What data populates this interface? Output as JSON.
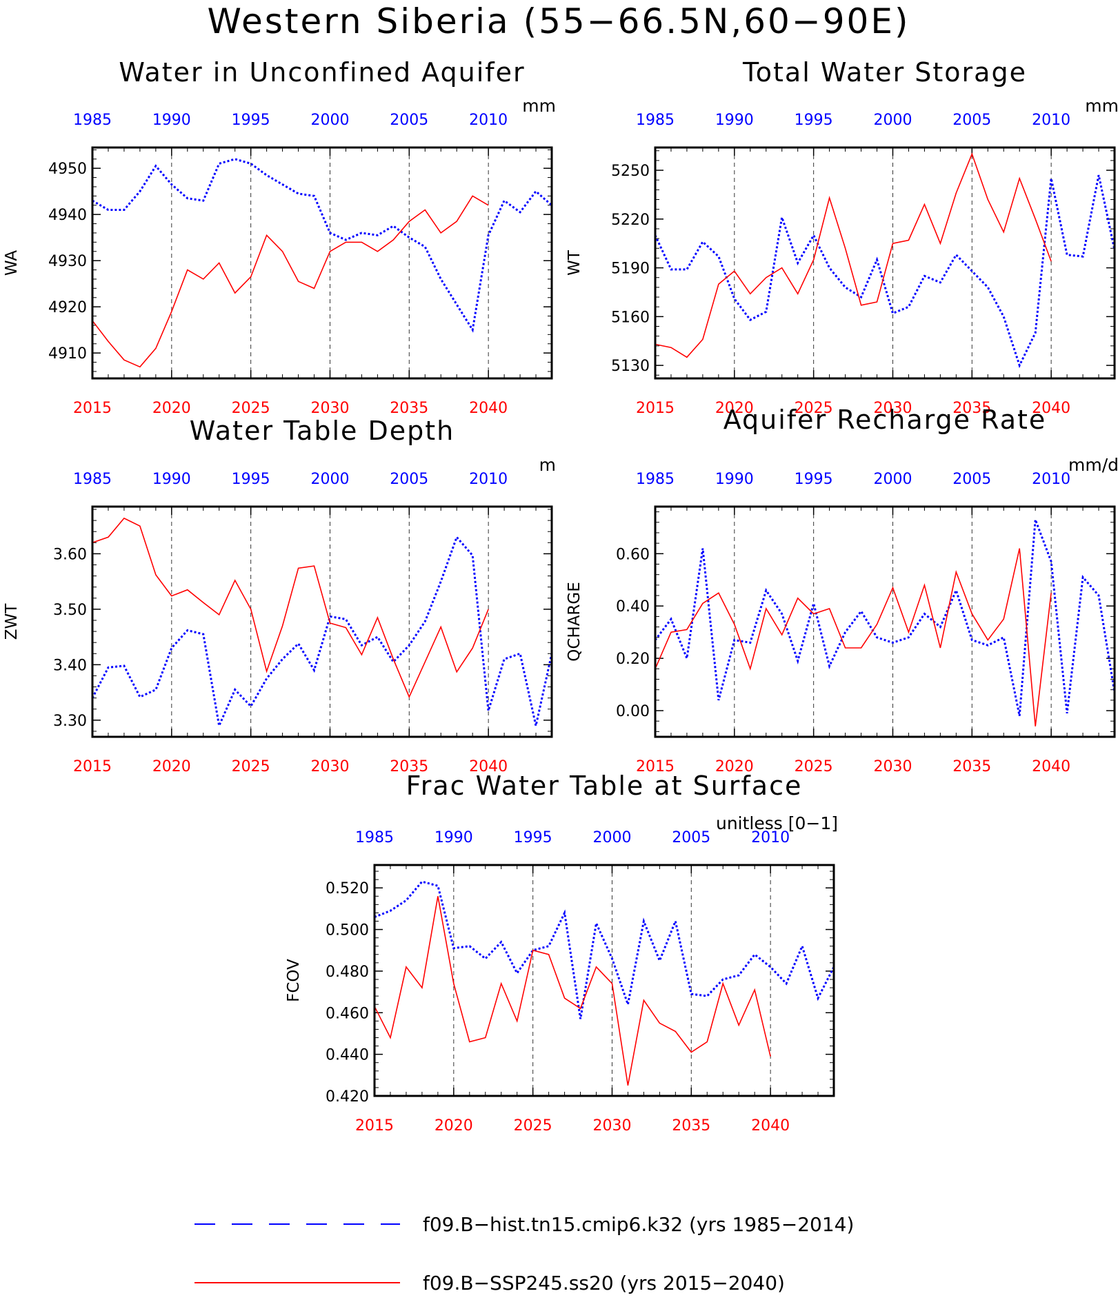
{
  "title": "Western Siberia (55−66.5N,60−90E)",
  "colors": {
    "hist": "#0000ff",
    "ssp": "#ff0000",
    "axis": "#000000"
  },
  "legend": [
    {
      "label": "f09.B−hist.tn15.cmip6.k32 (yrs 1985−2014)",
      "color": "#0000ff",
      "style": "dashed"
    },
    {
      "label": "f09.B−SSP245.ss20 (yrs 2015−2040)",
      "color": "#ff0000",
      "style": "solid"
    }
  ],
  "chart_data": [
    {
      "type": "line",
      "title": "Water in Unconfined Aquifer",
      "ylabel": "WA",
      "units": "mm",
      "ylim": [
        4904.5,
        4954.5
      ],
      "yticks": [
        4910,
        4920,
        4930,
        4940,
        4950
      ],
      "ytick_labels": [
        "4910",
        "4920",
        "4930",
        "4940",
        "4950"
      ],
      "x_top": {
        "range": [
          1985,
          2014
        ],
        "ticks": [
          1985,
          1990,
          1995,
          2000,
          2005,
          2010
        ]
      },
      "x_bottom": {
        "range": [
          2015,
          2044
        ],
        "ticks": [
          2015,
          2020,
          2025,
          2030,
          2035,
          2040
        ]
      },
      "vlines": [
        2020,
        2025,
        2030,
        2035,
        2040
      ],
      "series": [
        {
          "name": "f09.B−hist.tn15.cmip6.k32",
          "axis": "top",
          "style": "dashed",
          "x": [
            1985,
            1986,
            1987,
            1988,
            1989,
            1990,
            1991,
            1992,
            1993,
            1994,
            1995,
            1996,
            1997,
            1998,
            1999,
            2000,
            2001,
            2002,
            2003,
            2004,
            2005,
            2006,
            2007,
            2008,
            2009,
            2010,
            2011,
            2012,
            2013,
            2014
          ],
          "y": [
            4943,
            4941,
            4941,
            4945,
            4950.5,
            4946.5,
            4943.5,
            4943,
            4951,
            4952,
            4951,
            4948.5,
            4946.5,
            4944.5,
            4944,
            4936,
            4934.5,
            4936,
            4935.5,
            4937.5,
            4935,
            4933,
            4926,
            4920.5,
            4915,
            4935.5,
            4943,
            4940.5,
            4945,
            4942
          ]
        },
        {
          "name": "f09.B−SSP245.ss20",
          "axis": "bottom",
          "style": "solid",
          "x": [
            2015,
            2016,
            2017,
            2018,
            2019,
            2020,
            2021,
            2022,
            2023,
            2024,
            2025,
            2026,
            2027,
            2028,
            2029,
            2030,
            2031,
            2032,
            2033,
            2034,
            2035,
            2036,
            2037,
            2038,
            2039,
            2040
          ],
          "y": [
            4917,
            4912.5,
            4908.5,
            4907,
            4911,
            4919,
            4928,
            4926,
            4929.5,
            4923,
            4926.5,
            4935.5,
            4932,
            4925.5,
            4924,
            4932,
            4934,
            4934,
            4932,
            4934.5,
            4938.5,
            4941,
            4936,
            4938.5,
            4944,
            4942
          ]
        }
      ]
    },
    {
      "type": "line",
      "title": "Total Water Storage",
      "ylabel": "WT",
      "units": "mm",
      "ylim": [
        5122,
        5264
      ],
      "yticks": [
        5130,
        5160,
        5190,
        5220,
        5250
      ],
      "ytick_labels": [
        "5130",
        "5160",
        "5190",
        "5220",
        "5250"
      ],
      "x_top": {
        "range": [
          1985,
          2014
        ],
        "ticks": [
          1985,
          1990,
          1995,
          2000,
          2005,
          2010
        ]
      },
      "x_bottom": {
        "range": [
          2015,
          2044
        ],
        "ticks": [
          2015,
          2020,
          2025,
          2030,
          2035,
          2040
        ]
      },
      "vlines": [
        2020,
        2025,
        2030,
        2035,
        2040
      ],
      "series": [
        {
          "name": "f09.B−hist.tn15.cmip6.k32",
          "axis": "top",
          "style": "dashed",
          "x": [
            1985,
            1986,
            1987,
            1988,
            1989,
            1990,
            1991,
            1992,
            1993,
            1994,
            1995,
            1996,
            1997,
            1998,
            1999,
            2000,
            2001,
            2002,
            2003,
            2004,
            2005,
            2006,
            2007,
            2008,
            2009,
            2010,
            2011,
            2012,
            2013,
            2014
          ],
          "y": [
            5210,
            5189,
            5189,
            5206,
            5197,
            5171,
            5158,
            5163,
            5221,
            5193,
            5210,
            5190,
            5178,
            5172,
            5195,
            5162,
            5166,
            5185,
            5181,
            5198,
            5188,
            5178,
            5160,
            5130,
            5150,
            5245,
            5198,
            5197,
            5247,
            5201
          ]
        },
        {
          "name": "f09.B−SSP245.ss20",
          "axis": "bottom",
          "style": "solid",
          "x": [
            2015,
            2016,
            2017,
            2018,
            2019,
            2020,
            2021,
            2022,
            2023,
            2024,
            2025,
            2026,
            2027,
            2028,
            2029,
            2030,
            2031,
            2032,
            2033,
            2034,
            2035,
            2036,
            2037,
            2038,
            2039,
            2040
          ],
          "y": [
            5143,
            5141,
            5135,
            5146,
            5180,
            5188,
            5174,
            5184,
            5190,
            5174,
            5195,
            5233,
            5202,
            5167,
            5169,
            5205,
            5207,
            5229,
            5205,
            5236,
            5260,
            5232,
            5212,
            5245,
            5220,
            5194
          ]
        }
      ]
    },
    {
      "type": "line",
      "title": "Water Table Depth",
      "ylabel": "ZWT",
      "units": "m",
      "ylim": [
        3.27,
        3.685
      ],
      "yticks": [
        3.3,
        3.4,
        3.5,
        3.6
      ],
      "ytick_labels": [
        "3.30",
        "3.40",
        "3.50",
        "3.60"
      ],
      "x_top": {
        "range": [
          1985,
          2014
        ],
        "ticks": [
          1985,
          1990,
          1995,
          2000,
          2005,
          2010
        ]
      },
      "x_bottom": {
        "range": [
          2015,
          2044
        ],
        "ticks": [
          2015,
          2020,
          2025,
          2030,
          2035,
          2040
        ]
      },
      "vlines": [
        2020,
        2025,
        2030,
        2035,
        2040
      ],
      "series": [
        {
          "name": "f09.B−hist.tn15.cmip6.k32",
          "axis": "top",
          "style": "dashed",
          "x": [
            1985,
            1986,
            1987,
            1988,
            1989,
            1990,
            1991,
            1992,
            1993,
            1994,
            1995,
            1996,
            1997,
            1998,
            1999,
            2000,
            2001,
            2002,
            2003,
            2004,
            2005,
            2006,
            2007,
            2008,
            2009,
            2010,
            2011,
            2012,
            2013,
            2014
          ],
          "y": [
            3.34,
            3.395,
            3.398,
            3.342,
            3.355,
            3.43,
            3.462,
            3.455,
            3.29,
            3.355,
            3.325,
            3.375,
            3.41,
            3.438,
            3.39,
            3.487,
            3.482,
            3.435,
            3.45,
            3.405,
            3.435,
            3.478,
            3.55,
            3.63,
            3.597,
            3.317,
            3.41,
            3.42,
            3.29,
            3.42
          ]
        },
        {
          "name": "f09.B−SSP245.ss20",
          "axis": "bottom",
          "style": "solid",
          "x": [
            2015,
            2016,
            2017,
            2018,
            2019,
            2020,
            2021,
            2022,
            2023,
            2024,
            2025,
            2026,
            2027,
            2028,
            2029,
            2030,
            2031,
            2032,
            2033,
            2034,
            2035,
            2036,
            2037,
            2038,
            2039,
            2040
          ],
          "y": [
            3.62,
            3.63,
            3.664,
            3.65,
            3.562,
            3.524,
            3.535,
            3.512,
            3.49,
            3.552,
            3.5,
            3.388,
            3.47,
            3.574,
            3.578,
            3.475,
            3.467,
            3.418,
            3.485,
            3.41,
            3.342,
            3.405,
            3.468,
            3.387,
            3.43,
            3.5
          ]
        }
      ]
    },
    {
      "type": "line",
      "title": "Aquifer Recharge Rate",
      "ylabel": "QCHARGE",
      "units": "mm/d",
      "ylim": [
        -0.1,
        0.78
      ],
      "yticks": [
        0.0,
        0.2,
        0.4,
        0.6
      ],
      "ytick_labels": [
        "0.00",
        "0.20",
        "0.40",
        "0.60"
      ],
      "x_top": {
        "range": [
          1985,
          2014
        ],
        "ticks": [
          1985,
          1990,
          1995,
          2000,
          2005,
          2010
        ]
      },
      "x_bottom": {
        "range": [
          2015,
          2044
        ],
        "ticks": [
          2015,
          2020,
          2025,
          2030,
          2035,
          2040
        ]
      },
      "vlines": [
        2020,
        2025,
        2030,
        2035,
        2040
      ],
      "series": [
        {
          "name": "f09.B−hist.tn15.cmip6.k32",
          "axis": "top",
          "style": "dashed",
          "x": [
            1985,
            1986,
            1987,
            1988,
            1989,
            1990,
            1991,
            1992,
            1993,
            1994,
            1995,
            1996,
            1997,
            1998,
            1999,
            2000,
            2001,
            2002,
            2003,
            2004,
            2005,
            2006,
            2007,
            2008,
            2009,
            2010,
            2011,
            2012,
            2013,
            2014
          ],
          "y": [
            0.27,
            0.35,
            0.2,
            0.62,
            0.04,
            0.27,
            0.26,
            0.46,
            0.37,
            0.19,
            0.41,
            0.17,
            0.3,
            0.38,
            0.28,
            0.26,
            0.28,
            0.37,
            0.32,
            0.46,
            0.27,
            0.25,
            0.28,
            -0.02,
            0.73,
            0.57,
            -0.01,
            0.51,
            0.44,
            0.07
          ]
        },
        {
          "name": "f09.B−SSP245.ss20",
          "axis": "bottom",
          "style": "solid",
          "x": [
            2015,
            2016,
            2017,
            2018,
            2019,
            2020,
            2021,
            2022,
            2023,
            2024,
            2025,
            2026,
            2027,
            2028,
            2029,
            2030,
            2031,
            2032,
            2033,
            2034,
            2035,
            2036,
            2037,
            2038,
            2039,
            2040
          ],
          "y": [
            0.16,
            0.3,
            0.31,
            0.41,
            0.45,
            0.33,
            0.16,
            0.39,
            0.29,
            0.43,
            0.37,
            0.39,
            0.24,
            0.24,
            0.33,
            0.47,
            0.3,
            0.48,
            0.24,
            0.53,
            0.37,
            0.27,
            0.35,
            0.62,
            -0.06,
            0.45
          ]
        }
      ]
    },
    {
      "type": "line",
      "title": "Frac Water Table at Surface",
      "ylabel": "FCOV",
      "units": "unitless [0−1]",
      "ylim": [
        0.42,
        0.531
      ],
      "yticks": [
        0.42,
        0.44,
        0.46,
        0.48,
        0.5,
        0.52
      ],
      "ytick_labels": [
        "0.420",
        "0.440",
        "0.460",
        "0.480",
        "0.500",
        "0.520"
      ],
      "x_top": {
        "range": [
          1985,
          2014
        ],
        "ticks": [
          1985,
          1990,
          1995,
          2000,
          2005,
          2010
        ]
      },
      "x_bottom": {
        "range": [
          2015,
          2044
        ],
        "ticks": [
          2015,
          2020,
          2025,
          2030,
          2035,
          2040
        ]
      },
      "vlines": [
        2020,
        2025,
        2030,
        2035,
        2040
      ],
      "series": [
        {
          "name": "f09.B−hist.tn15.cmip6.k32",
          "axis": "top",
          "style": "dashed",
          "x": [
            1985,
            1986,
            1987,
            1988,
            1989,
            1990,
            1991,
            1992,
            1993,
            1994,
            1995,
            1996,
            1997,
            1998,
            1999,
            2000,
            2001,
            2002,
            2003,
            2004,
            2005,
            2006,
            2007,
            2008,
            2009,
            2010,
            2011,
            2012,
            2013,
            2014
          ],
          "y": [
            0.506,
            0.509,
            0.514,
            0.523,
            0.521,
            0.491,
            0.492,
            0.486,
            0.494,
            0.479,
            0.49,
            0.492,
            0.508,
            0.457,
            0.503,
            0.486,
            0.464,
            0.504,
            0.485,
            0.504,
            0.469,
            0.468,
            0.476,
            0.478,
            0.488,
            0.482,
            0.474,
            0.492,
            0.467,
            0.482
          ]
        },
        {
          "name": "f09.B−SSP245.ss20",
          "axis": "bottom",
          "style": "solid",
          "x": [
            2015,
            2016,
            2017,
            2018,
            2019,
            2020,
            2021,
            2022,
            2023,
            2024,
            2025,
            2026,
            2027,
            2028,
            2029,
            2030,
            2031,
            2032,
            2033,
            2034,
            2035,
            2036,
            2037,
            2038,
            2039,
            2040
          ],
          "y": [
            0.463,
            0.448,
            0.482,
            0.472,
            0.516,
            0.474,
            0.446,
            0.448,
            0.474,
            0.456,
            0.49,
            0.488,
            0.467,
            0.462,
            0.482,
            0.474,
            0.425,
            0.466,
            0.455,
            0.451,
            0.441,
            0.446,
            0.474,
            0.454,
            0.471,
            0.439
          ]
        }
      ]
    }
  ]
}
